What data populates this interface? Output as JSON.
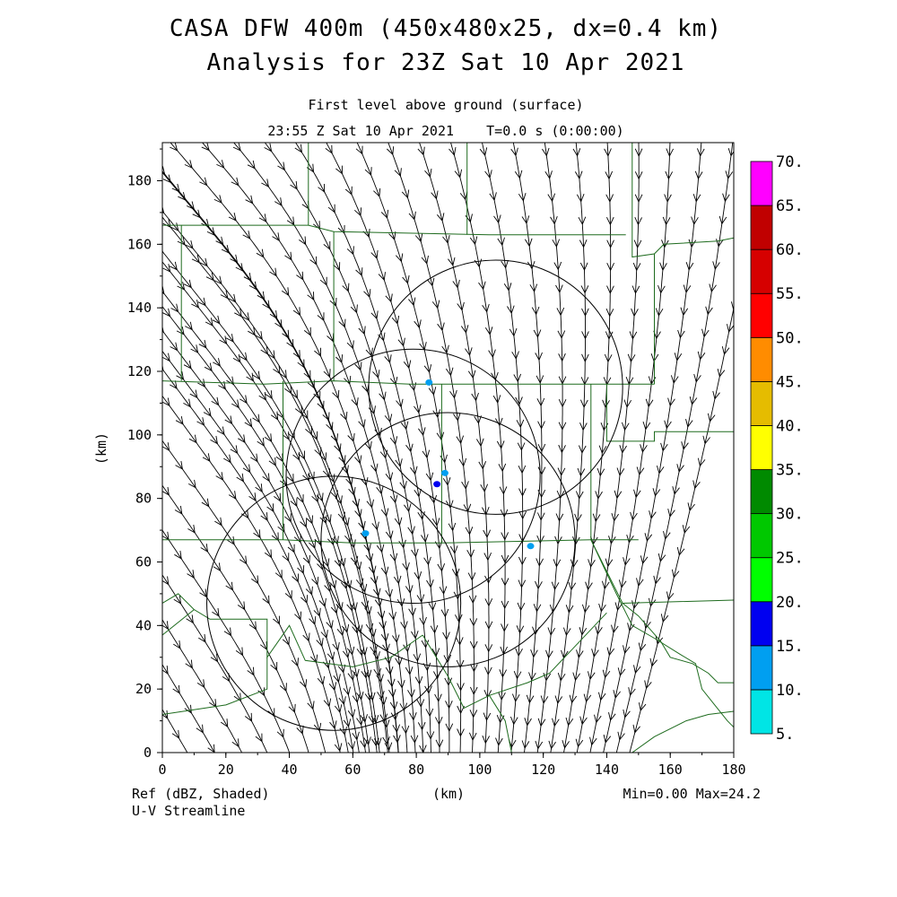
{
  "header": {
    "title_line1": "CASA DFW 400m (450x480x25, dx=0.4 km)",
    "title_line2": "Analysis for 23Z Sat 10 Apr 2021",
    "subtitle_line1": "First level above ground (surface)",
    "subtitle_line2": "23:55 Z Sat 10 Apr 2021    T=0.0 s (0:00:00)"
  },
  "footer": {
    "left_line1": "Ref (dBZ, Shaded)",
    "left_line2": "U-V Streamline",
    "xlabel": "(km)",
    "minmax": "Min=0.00 Max=24.2"
  },
  "colors": {
    "grid_outline": "#1e6b1e",
    "streamline": "#000000",
    "range_ring": "#000000"
  },
  "chart_data": {
    "type": "heatmap",
    "xlabel": "(km)",
    "ylabel": "(km)",
    "xlim": [
      0,
      180
    ],
    "ylim": [
      0,
      192
    ],
    "xticks": [
      "0",
      "20",
      "40",
      "60",
      "80",
      "100",
      "120",
      "140",
      "160",
      "180"
    ],
    "yticks": [
      "0",
      "20",
      "40",
      "60",
      "80",
      "100",
      "120",
      "140",
      "160",
      "180"
    ],
    "field": "Ref (dBZ, Shaded)",
    "overlay": "U-V Streamline",
    "min": 0.0,
    "max": 24.2,
    "colorbar": {
      "labels": [
        "5.",
        "10.",
        "15.",
        "20.",
        "25.",
        "30.",
        "35.",
        "40.",
        "45.",
        "50.",
        "55.",
        "60.",
        "65.",
        "70."
      ],
      "colors": [
        "#00e5e5",
        "#009ff0",
        "#0000f0",
        "#00ff00",
        "#00c800",
        "#008a00",
        "#ffff00",
        "#e5bc00",
        "#ff8c00",
        "#ff0000",
        "#d60000",
        "#c00000",
        "#ff00ff"
      ]
    },
    "range_rings": [
      {
        "center": [
          54,
          47
        ],
        "radius_km": 40
      },
      {
        "center": [
          79,
          87
        ],
        "radius_km": 40
      },
      {
        "center": [
          90,
          67
        ],
        "radius_km": 40
      },
      {
        "center": [
          105,
          115
        ],
        "radius_km": 40
      }
    ],
    "echoes": [
      {
        "x": 84,
        "y": 116.5,
        "dbz": 10
      },
      {
        "x": 89,
        "y": 88,
        "dbz": 13
      },
      {
        "x": 86.5,
        "y": 84.5,
        "dbz": 15
      },
      {
        "x": 116,
        "y": 65,
        "dbz": 12
      },
      {
        "x": 64,
        "y": 69,
        "dbz": 10
      }
    ],
    "county_boundaries": [
      [
        [
          0,
          166
        ],
        [
          46,
          166
        ],
        [
          54,
          164
        ],
        [
          103,
          163
        ],
        [
          146,
          163
        ]
      ],
      [
        [
          46,
          192
        ],
        [
          46,
          166
        ]
      ],
      [
        [
          0,
          117
        ],
        [
          32,
          116
        ],
        [
          54,
          117
        ],
        [
          78,
          116
        ],
        [
          140,
          116
        ],
        [
          155,
          116
        ]
      ],
      [
        [
          6,
          166
        ],
        [
          6,
          117
        ]
      ],
      [
        [
          54,
          164
        ],
        [
          54,
          117
        ]
      ],
      [
        [
          96,
          192
        ],
        [
          96,
          163
        ]
      ],
      [
        [
          148,
          192
        ],
        [
          148,
          156
        ],
        [
          155,
          157
        ],
        [
          158,
          160
        ],
        [
          175,
          161
        ],
        [
          180,
          162
        ]
      ],
      [
        [
          155,
          157
        ],
        [
          155,
          116
        ]
      ],
      [
        [
          140,
          116
        ],
        [
          140,
          98
        ],
        [
          155,
          98
        ],
        [
          155,
          101
        ],
        [
          180,
          101
        ]
      ],
      [
        [
          0,
          67
        ],
        [
          38,
          67
        ],
        [
          60,
          66
        ],
        [
          88,
          66
        ],
        [
          135,
          67
        ],
        [
          150,
          67
        ]
      ],
      [
        [
          38,
          117
        ],
        [
          38,
          67
        ]
      ],
      [
        [
          88,
          116
        ],
        [
          88,
          66
        ]
      ],
      [
        [
          135,
          116
        ],
        [
          135,
          67
        ]
      ],
      [
        [
          135,
          67
        ],
        [
          142,
          53
        ],
        [
          145,
          47
        ],
        [
          180,
          48
        ]
      ],
      [
        [
          145,
          47
        ],
        [
          150,
          43
        ],
        [
          157,
          35
        ],
        [
          160,
          30
        ],
        [
          167,
          28
        ],
        [
          172,
          25
        ],
        [
          175,
          22
        ],
        [
          180,
          22
        ]
      ],
      [
        [
          135,
          67
        ],
        [
          143,
          50
        ],
        [
          148,
          40
        ],
        [
          155,
          36
        ],
        [
          163,
          31
        ],
        [
          168,
          28
        ],
        [
          170,
          20
        ],
        [
          174,
          15
        ],
        [
          178,
          10
        ],
        [
          180,
          8
        ]
      ],
      [
        [
          0,
          67
        ],
        [
          0,
          80
        ]
      ],
      [
        [
          0,
          37
        ],
        [
          10,
          45
        ],
        [
          15,
          42
        ],
        [
          33,
          42
        ],
        [
          33,
          30
        ],
        [
          40,
          40
        ],
        [
          45,
          29
        ],
        [
          60,
          27
        ],
        [
          72,
          30
        ],
        [
          82,
          37
        ]
      ],
      [
        [
          33,
          30
        ],
        [
          33,
          20
        ],
        [
          20,
          15
        ],
        [
          0,
          12
        ]
      ],
      [
        [
          82,
          37
        ],
        [
          90,
          24
        ],
        [
          95,
          14
        ],
        [
          103,
          18
        ],
        [
          115,
          22
        ],
        [
          122,
          25
        ],
        [
          140,
          44
        ]
      ],
      [
        [
          103,
          18
        ],
        [
          108,
          10
        ],
        [
          110,
          0
        ]
      ],
      [
        [
          148,
          0
        ],
        [
          155,
          5
        ],
        [
          165,
          10
        ],
        [
          172,
          12
        ],
        [
          180,
          13
        ]
      ],
      [
        [
          10,
          45
        ],
        [
          5,
          50
        ],
        [
          0,
          47
        ]
      ]
    ]
  }
}
